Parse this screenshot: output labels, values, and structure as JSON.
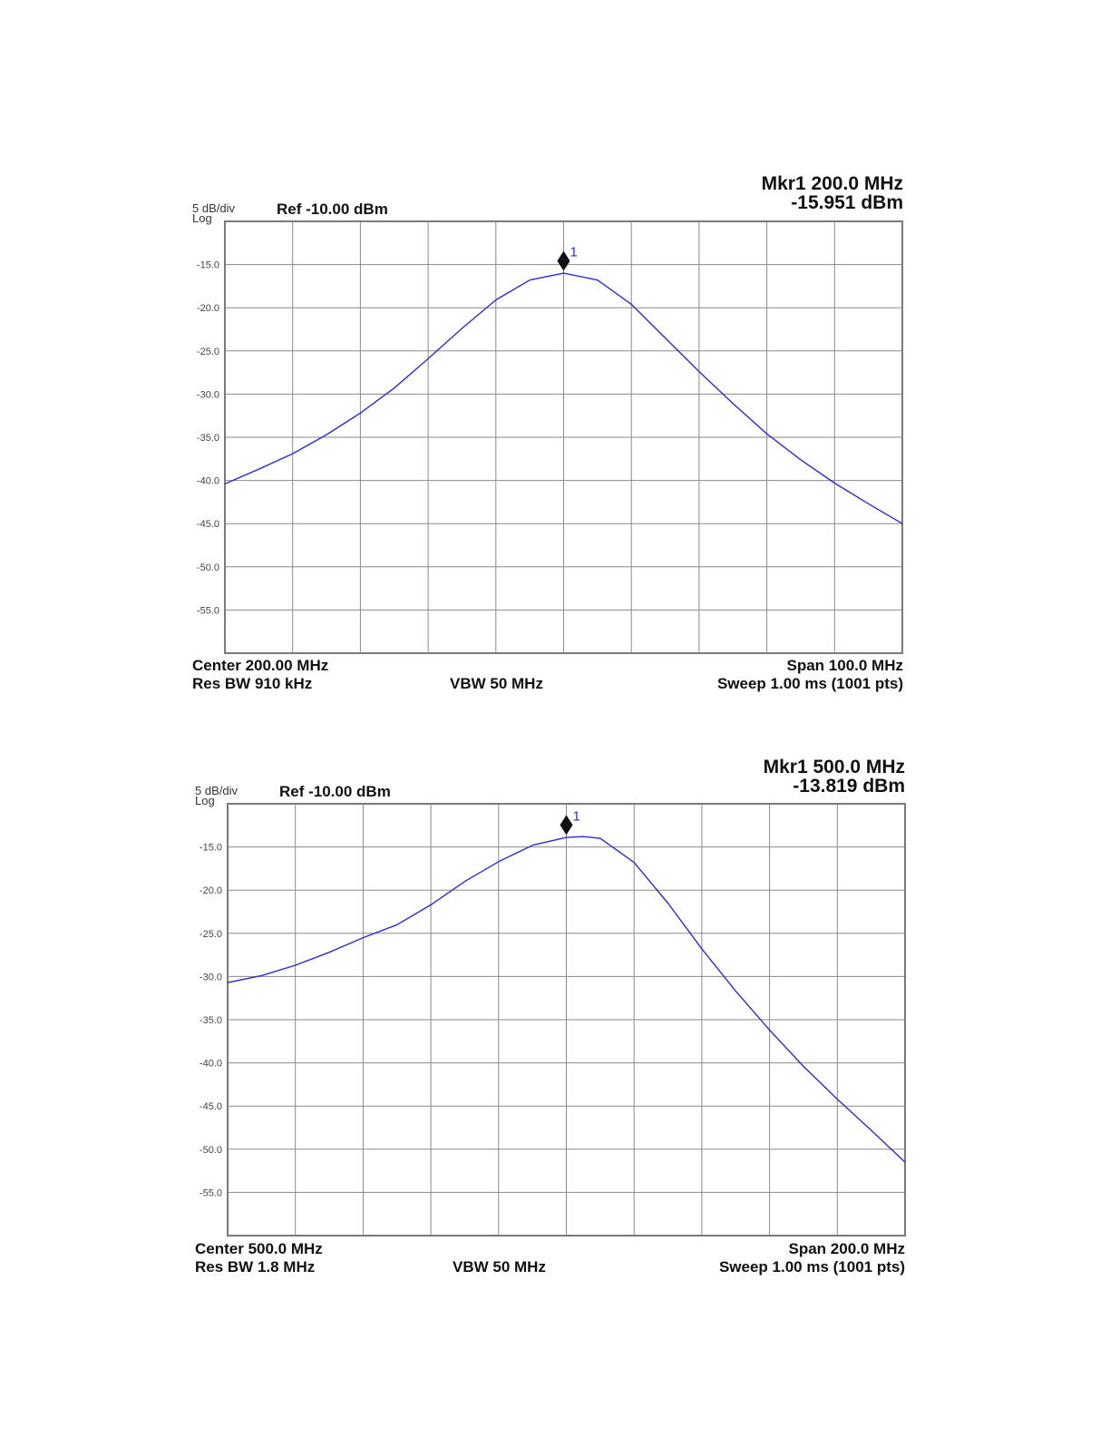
{
  "chart_data": [
    {
      "type": "line",
      "marker": {
        "label": "Mkr1 200.0 MHz",
        "value": "-15.951 dBm",
        "id": "1",
        "x_mhz": 200.0,
        "y_dbm": -15.951
      },
      "scale_label": "5 dB/div",
      "scale_type": "Log",
      "ref_level": "Ref -10.00 dBm",
      "yticks": [
        "-15.0",
        "-20.0",
        "-25.0",
        "-30.0",
        "-35.0",
        "-40.0",
        "-45.0",
        "-50.0",
        "-55.0"
      ],
      "ylim": [
        -60,
        -10
      ],
      "xlim": [
        150,
        250
      ],
      "center": "Center 200.00 MHz",
      "span": "Span 100.0 MHz",
      "res_bw": "Res BW 910 kHz",
      "vbw": "VBW 50 MHz",
      "sweep": "Sweep  1.00 ms (1001 pts)",
      "grid": true,
      "series": [
        {
          "color": "#2b2bd6",
          "x": [
            150,
            155,
            160,
            165,
            170,
            175,
            180,
            185,
            190,
            195,
            200,
            205,
            210,
            215,
            220,
            225,
            230,
            235,
            240,
            245,
            250
          ],
          "y": [
            -40.4,
            -38.7,
            -36.9,
            -34.7,
            -32.2,
            -29.3,
            -25.9,
            -22.4,
            -19.1,
            -16.8,
            -16.0,
            -16.8,
            -19.6,
            -23.5,
            -27.4,
            -31.1,
            -34.6,
            -37.6,
            -40.3,
            -42.7,
            -45.0
          ]
        }
      ]
    },
    {
      "type": "line",
      "marker": {
        "label": "Mkr1 500.0 MHz",
        "value": "-13.819 dBm",
        "id": "1",
        "x_mhz": 500.0,
        "y_dbm": -13.819
      },
      "scale_label": "5 dB/div",
      "scale_type": "Log",
      "ref_level": "Ref -10.00 dBm",
      "yticks": [
        "-15.0",
        "-20.0",
        "-25.0",
        "-30.0",
        "-35.0",
        "-40.0",
        "-45.0",
        "-50.0",
        "-55.0"
      ],
      "ylim": [
        -60,
        -10
      ],
      "xlim": [
        400,
        600
      ],
      "center": "Center 500.0 MHz",
      "span": "Span 200.0 MHz",
      "res_bw": "Res BW 1.8 MHz",
      "vbw": "VBW 50 MHz",
      "sweep": "Sweep  1.00 ms (1001 pts)",
      "grid": true,
      "series": [
        {
          "color": "#2b2bd6",
          "x": [
            400,
            410,
            420,
            430,
            440,
            450,
            460,
            470,
            480,
            490,
            500,
            505,
            510,
            520,
            530,
            540,
            550,
            560,
            570,
            580,
            590,
            600
          ],
          "y": [
            -30.7,
            -29.9,
            -28.7,
            -27.2,
            -25.5,
            -24.0,
            -21.7,
            -19.0,
            -16.7,
            -14.8,
            -13.9,
            -13.8,
            -14.0,
            -16.8,
            -21.5,
            -26.8,
            -31.7,
            -36.2,
            -40.4,
            -44.2,
            -47.8,
            -51.5
          ]
        }
      ]
    }
  ]
}
